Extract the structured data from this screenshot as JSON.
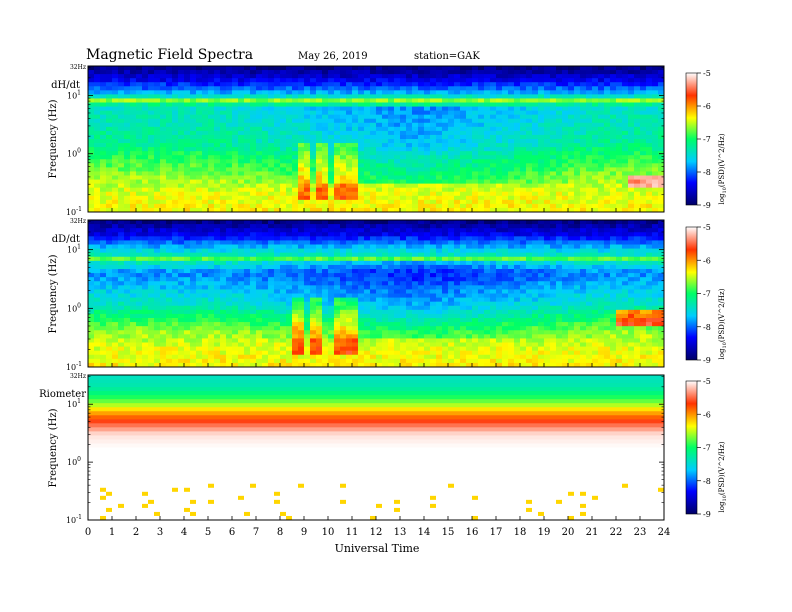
{
  "header": {
    "title": "Magnetic  Field  Spectra",
    "date": "May 26, 2019",
    "station": "station=GAK"
  },
  "colors": {
    "colormap": [
      "#000066",
      "#0000ff",
      "#00ccff",
      "#00ff66",
      "#ffff00",
      "#ff3300",
      "#ffffff"
    ]
  },
  "chart_data": [
    {
      "type": "heatmap",
      "panel_label": "dH/dt",
      "top_label": "32Hz",
      "ylabel": "Frequency  (Hz)",
      "y_scale": "log",
      "y_ticks": [
        {
          "exp": "-1",
          "value": 0.1
        },
        {
          "exp": "0",
          "value": 1
        },
        {
          "exp": "1",
          "value": 10
        }
      ],
      "ylim": [
        0.1,
        32
      ],
      "x_ticks": [
        "0",
        "1",
        "2",
        "3",
        "4",
        "5",
        "6",
        "7",
        "8",
        "9",
        "10",
        "11",
        "12",
        "13",
        "14",
        "15",
        "16",
        "17",
        "18",
        "19",
        "20",
        "21",
        "22",
        "23",
        "24"
      ],
      "xlim": [
        0,
        24
      ],
      "colorbar_label": "log10(PSD)(V^2/Hz)",
      "colorbar_ticks": [
        "-5",
        "-6",
        "-7",
        "-8",
        "-9"
      ],
      "colorbar_range": [
        -9,
        -5
      ],
      "profile": {
        "freqs": [
          0.1,
          0.2,
          0.4,
          0.8,
          1.5,
          3,
          6,
          8,
          12,
          20,
          32
        ],
        "level": [
          -6.3,
          -6.4,
          -6.6,
          -6.9,
          -7.2,
          -7.3,
          -7.4,
          -7.0,
          -7.9,
          -8.5,
          -8.9
        ]
      },
      "features": [
        {
          "kind": "diurnal_low",
          "center_hour": 13.5,
          "delta": -0.5
        },
        {
          "kind": "bursts",
          "hours": [
            9.0,
            9.7,
            10.5,
            11.1
          ],
          "delta": 0.6
        },
        {
          "kind": "patch",
          "hour_range": [
            22.4,
            24
          ],
          "freq_range": [
            0.25,
            0.45
          ],
          "delta": 1.2
        },
        {
          "kind": "line",
          "freq": 8,
          "delta": 0.4
        }
      ]
    },
    {
      "type": "heatmap",
      "panel_label": "dD/dt",
      "top_label": "32Hz",
      "ylabel": "Frequency  (Hz)",
      "y_scale": "log",
      "y_ticks": [
        {
          "exp": "-1",
          "value": 0.1
        },
        {
          "exp": "0",
          "value": 1
        },
        {
          "exp": "1",
          "value": 10
        }
      ],
      "ylim": [
        0.1,
        32
      ],
      "x_ticks": [
        "0",
        "1",
        "2",
        "3",
        "4",
        "5",
        "6",
        "7",
        "8",
        "9",
        "10",
        "11",
        "12",
        "13",
        "14",
        "15",
        "16",
        "17",
        "18",
        "19",
        "20",
        "21",
        "22",
        "23",
        "24"
      ],
      "xlim": [
        0,
        24
      ],
      "colorbar_label": "log10(PSD)(V^2/Hz)",
      "colorbar_ticks": [
        "-5",
        "-6",
        "-7",
        "-8",
        "-9"
      ],
      "colorbar_range": [
        -9,
        -5
      ],
      "profile": {
        "freqs": [
          0.1,
          0.2,
          0.4,
          0.7,
          1.2,
          2,
          4,
          7,
          10,
          18,
          32
        ],
        "level": [
          -6.3,
          -6.4,
          -6.6,
          -7.0,
          -7.4,
          -7.6,
          -7.9,
          -7.2,
          -7.6,
          -8.4,
          -8.9
        ]
      },
      "features": [
        {
          "kind": "diurnal_low",
          "center_hour": 13.5,
          "delta": -0.4
        },
        {
          "kind": "bursts",
          "hours": [
            8.7,
            9.6,
            10.4,
            11.0
          ],
          "delta": 0.7
        },
        {
          "kind": "patch",
          "hour_range": [
            22.0,
            24
          ],
          "freq_range": [
            0.5,
            0.9
          ],
          "delta": 1.2
        },
        {
          "kind": "line",
          "freq": 7,
          "delta": 0.4
        }
      ]
    },
    {
      "type": "heatmap",
      "panel_label": "Riometer",
      "top_label": "32Hz",
      "ylabel": "Frequency  (Hz)",
      "y_scale": "log",
      "y_ticks": [
        {
          "exp": "-1",
          "value": 0.1
        },
        {
          "exp": "0",
          "value": 1
        },
        {
          "exp": "1",
          "value": 10
        }
      ],
      "ylim": [
        0.1,
        32
      ],
      "x_ticks": [
        "0",
        "1",
        "2",
        "3",
        "4",
        "5",
        "6",
        "7",
        "8",
        "9",
        "10",
        "11",
        "12",
        "13",
        "14",
        "15",
        "16",
        "17",
        "18",
        "19",
        "20",
        "21",
        "22",
        "23",
        "24"
      ],
      "xlim": [
        0,
        24
      ],
      "xlabel": "Universal  Time",
      "colorbar_label": "log10(PSD)(V^2/Hz)",
      "colorbar_ticks": [
        "-5",
        "-6",
        "-7",
        "-8",
        "-9"
      ],
      "colorbar_range": [
        -9,
        -5
      ],
      "profile": {
        "freqs": [
          0.1,
          0.3,
          1,
          3,
          5,
          8,
          10,
          14,
          20,
          32
        ],
        "level": [
          -4.9,
          -4.9,
          -4.9,
          -5.1,
          -5.6,
          -6.2,
          -6.6,
          -7.0,
          -7.3,
          -7.4
        ]
      },
      "features": [
        {
          "kind": "speckle",
          "freq_range": [
            0.1,
            0.4
          ],
          "level": -6.2
        }
      ]
    }
  ]
}
